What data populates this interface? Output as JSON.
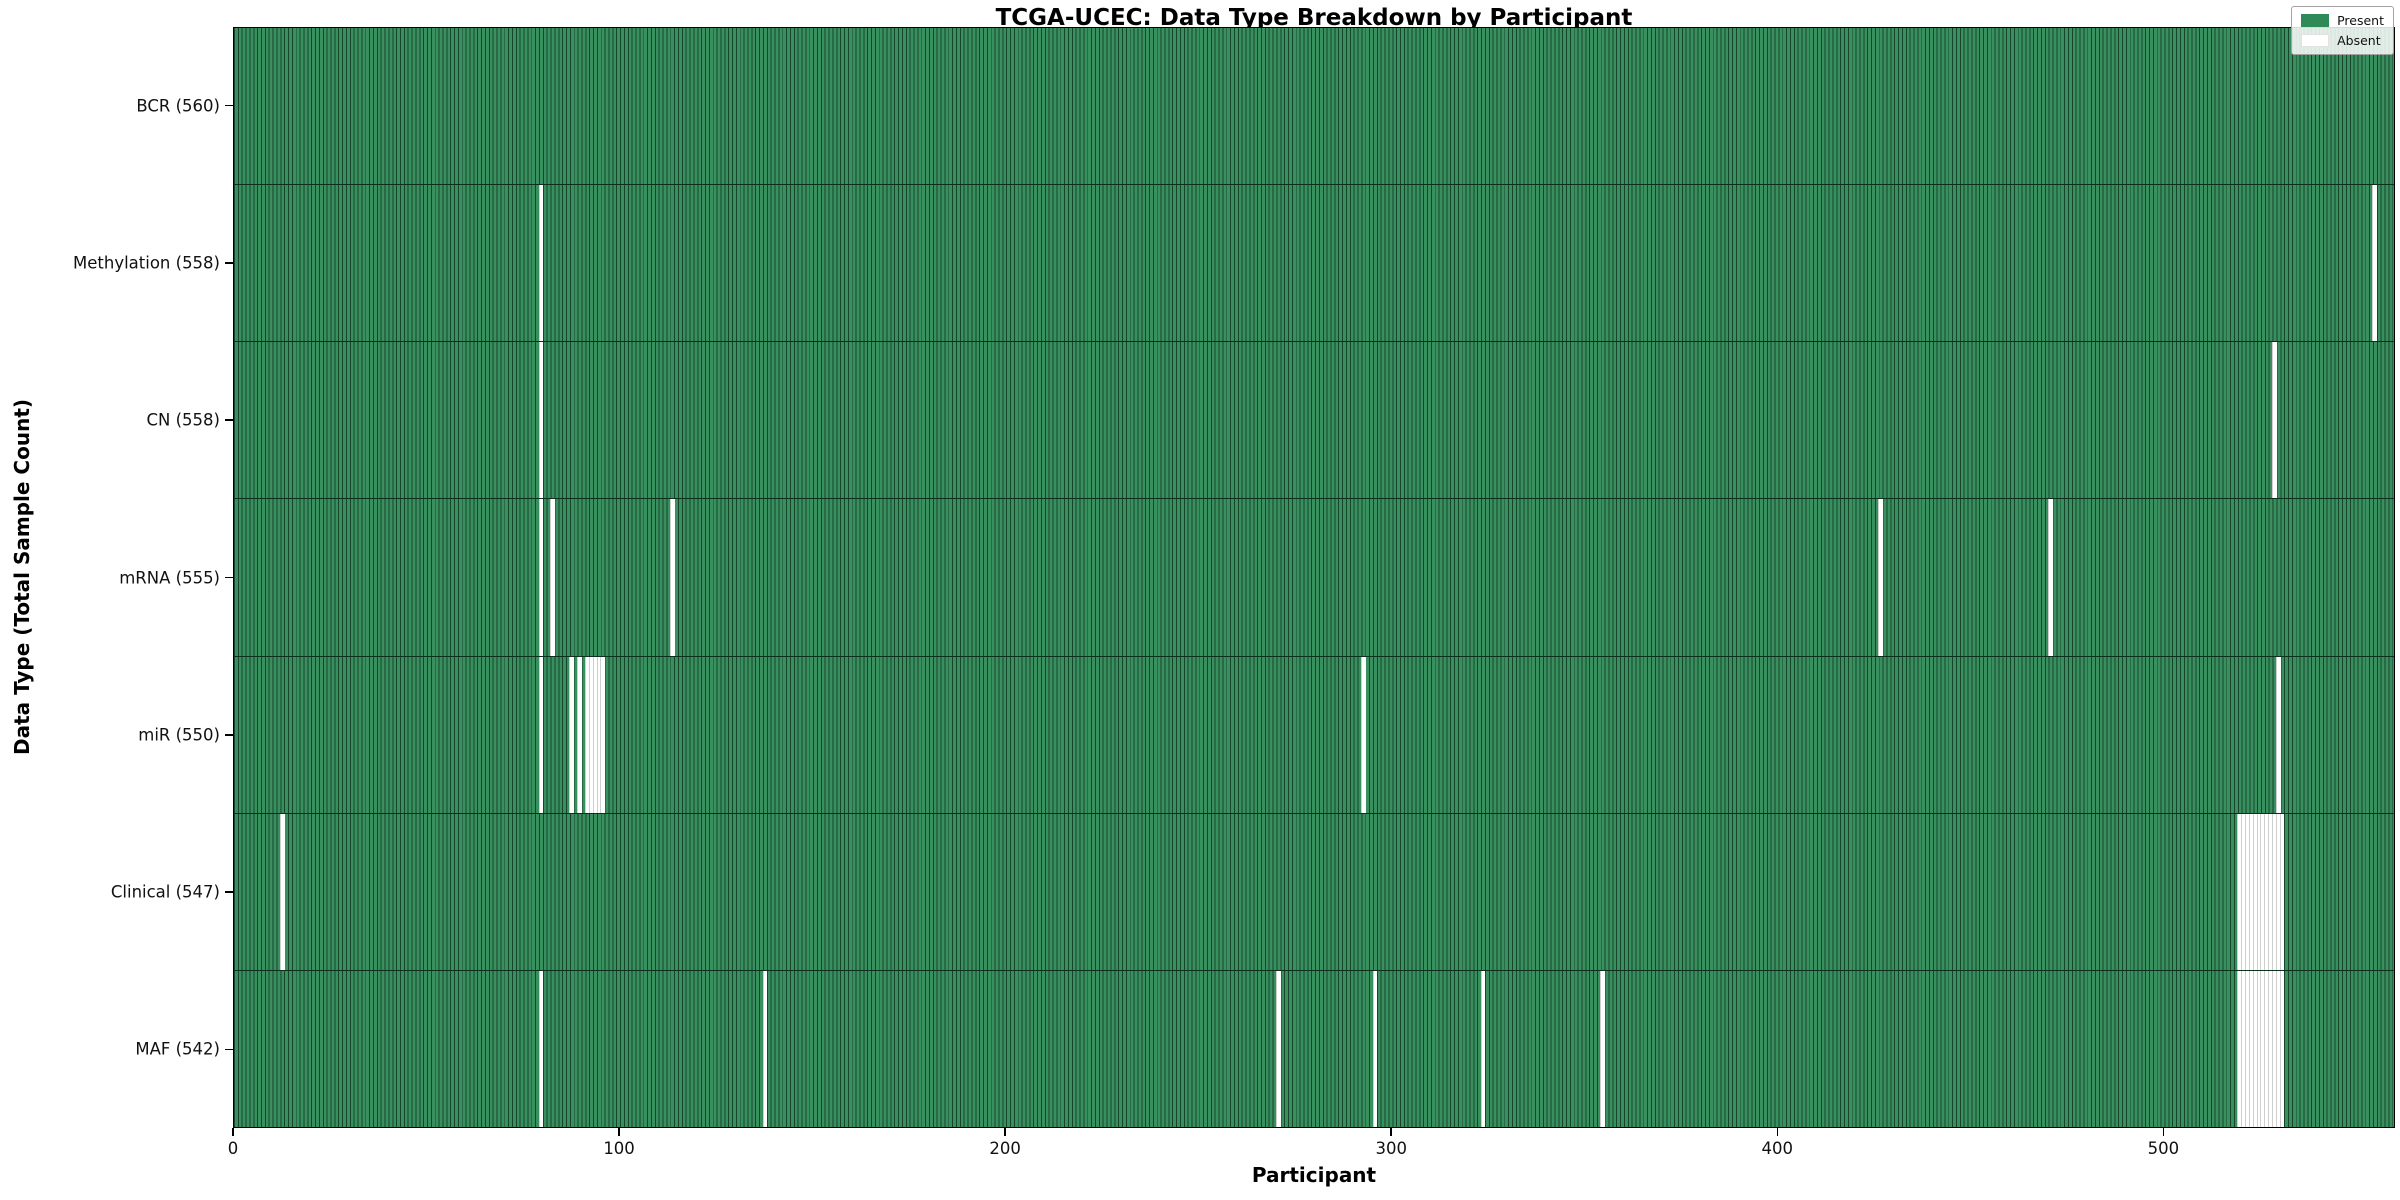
{
  "chart_data": {
    "type": "heatmap",
    "title": "TCGA-UCEC: Data Type Breakdown by Participant",
    "xlabel": "Participant",
    "ylabel": "Data Type (Total Sample Count)",
    "n_participants": 560,
    "x_range": [
      0,
      560
    ],
    "x_ticks": [
      0,
      100,
      200,
      300,
      400,
      500
    ],
    "grid": false,
    "legend_position": "upper right",
    "legend": [
      {
        "label": "Present",
        "color": "#2e8b57"
      },
      {
        "label": "Absent",
        "color": "#ffffff"
      }
    ],
    "colors": {
      "present_fill": "#38905e",
      "present_edge": "#16452c",
      "absent_fill": "#ffffff"
    },
    "rows": [
      {
        "label": "BCR",
        "total": 560,
        "absent": []
      },
      {
        "label": "Methylation",
        "total": 558,
        "absent": [
          79,
          554
        ]
      },
      {
        "label": "CN",
        "total": 558,
        "absent": [
          79,
          528
        ]
      },
      {
        "label": "mRNA",
        "total": 555,
        "absent": [
          79,
          82,
          113,
          426,
          470
        ]
      },
      {
        "label": "miR",
        "total": 550,
        "absent": [
          79,
          87,
          89,
          91,
          92,
          93,
          94,
          95,
          292,
          529
        ]
      },
      {
        "label": "Clinical",
        "total": 547,
        "absent": [
          12,
          519,
          520,
          521,
          522,
          523,
          524,
          525,
          526,
          527,
          528,
          529,
          530
        ]
      },
      {
        "label": "MAF",
        "total": 542,
        "absent": [
          79,
          137,
          270,
          295,
          323,
          354,
          519,
          520,
          521,
          522,
          523,
          524,
          525,
          526,
          527,
          528,
          529,
          530
        ]
      }
    ]
  }
}
